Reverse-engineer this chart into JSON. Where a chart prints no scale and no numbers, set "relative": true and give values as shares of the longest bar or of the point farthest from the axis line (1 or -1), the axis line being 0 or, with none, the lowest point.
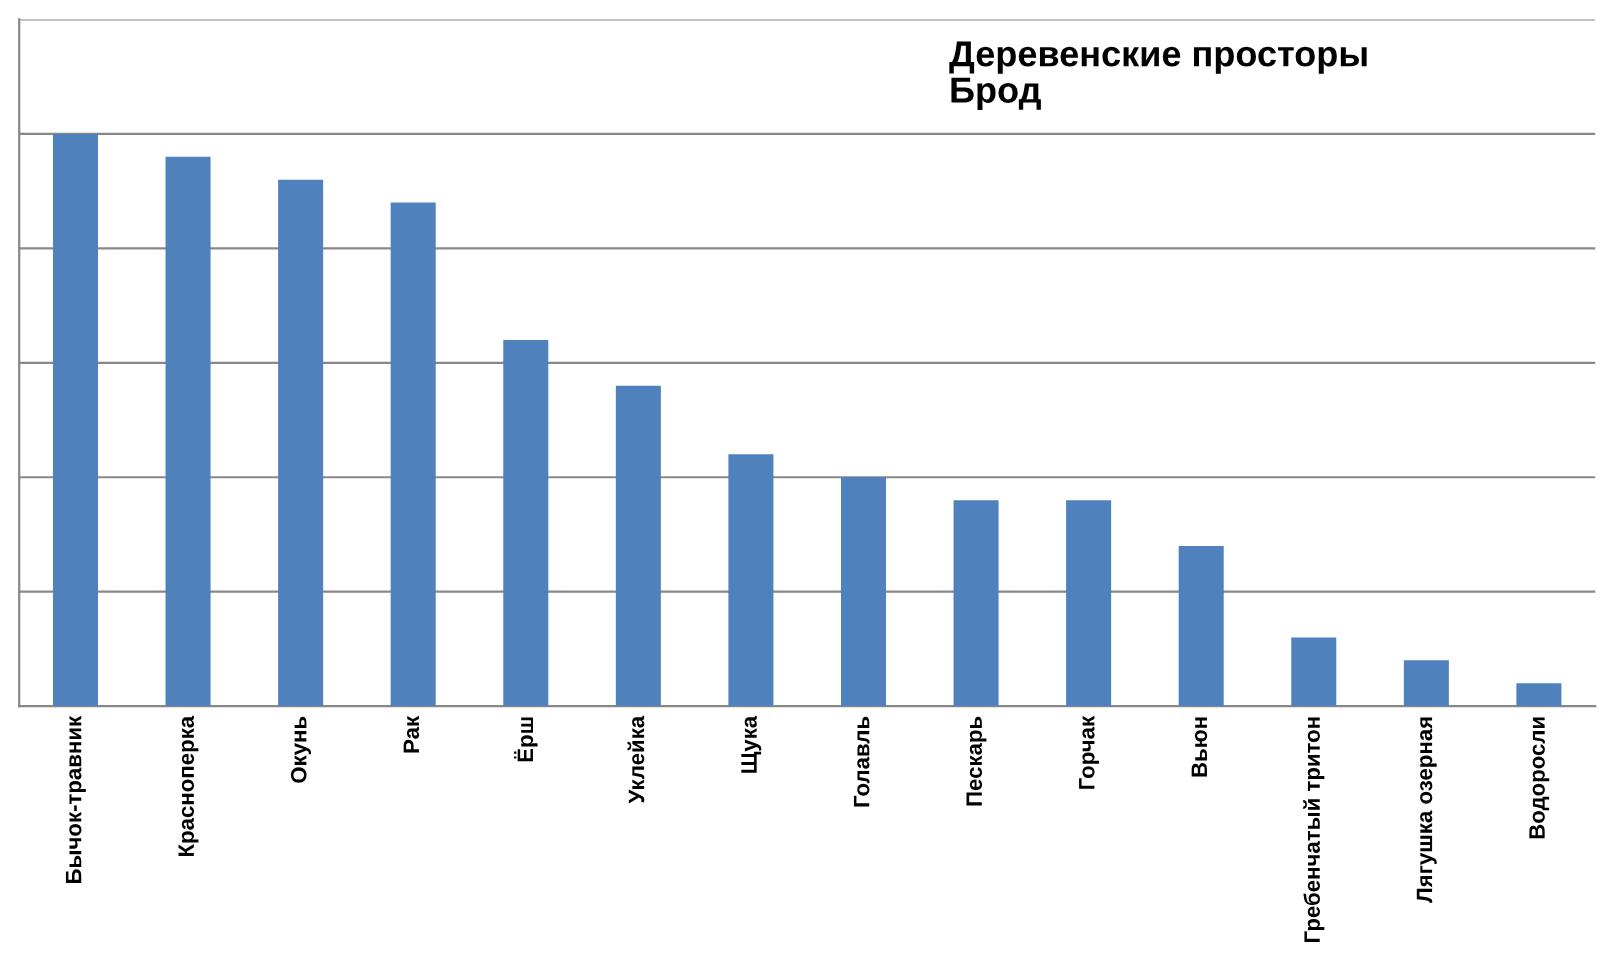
{
  "chart_data": {
    "type": "bar",
    "title": "Деревенские просторы\nБрод",
    "categories": [
      "Бычок-травник",
      "Красноперка",
      "Окунь",
      "Рак",
      "Ёрш",
      "Уклейка",
      "Щука",
      "Голавль",
      "Пескарь",
      "Горчак",
      "Вьюн",
      "Гребенчатый тритон",
      "Лягушка озерная",
      "Водоросли"
    ],
    "values": [
      1,
      0.96,
      0.92,
      0.88,
      0.64,
      0.56,
      0.44,
      0.4,
      0.36,
      0.36,
      0.28,
      0.12,
      0.08,
      0.04
    ],
    "color": "#4f81bd",
    "relative": true,
    "grid": "y",
    "legend": false
  }
}
